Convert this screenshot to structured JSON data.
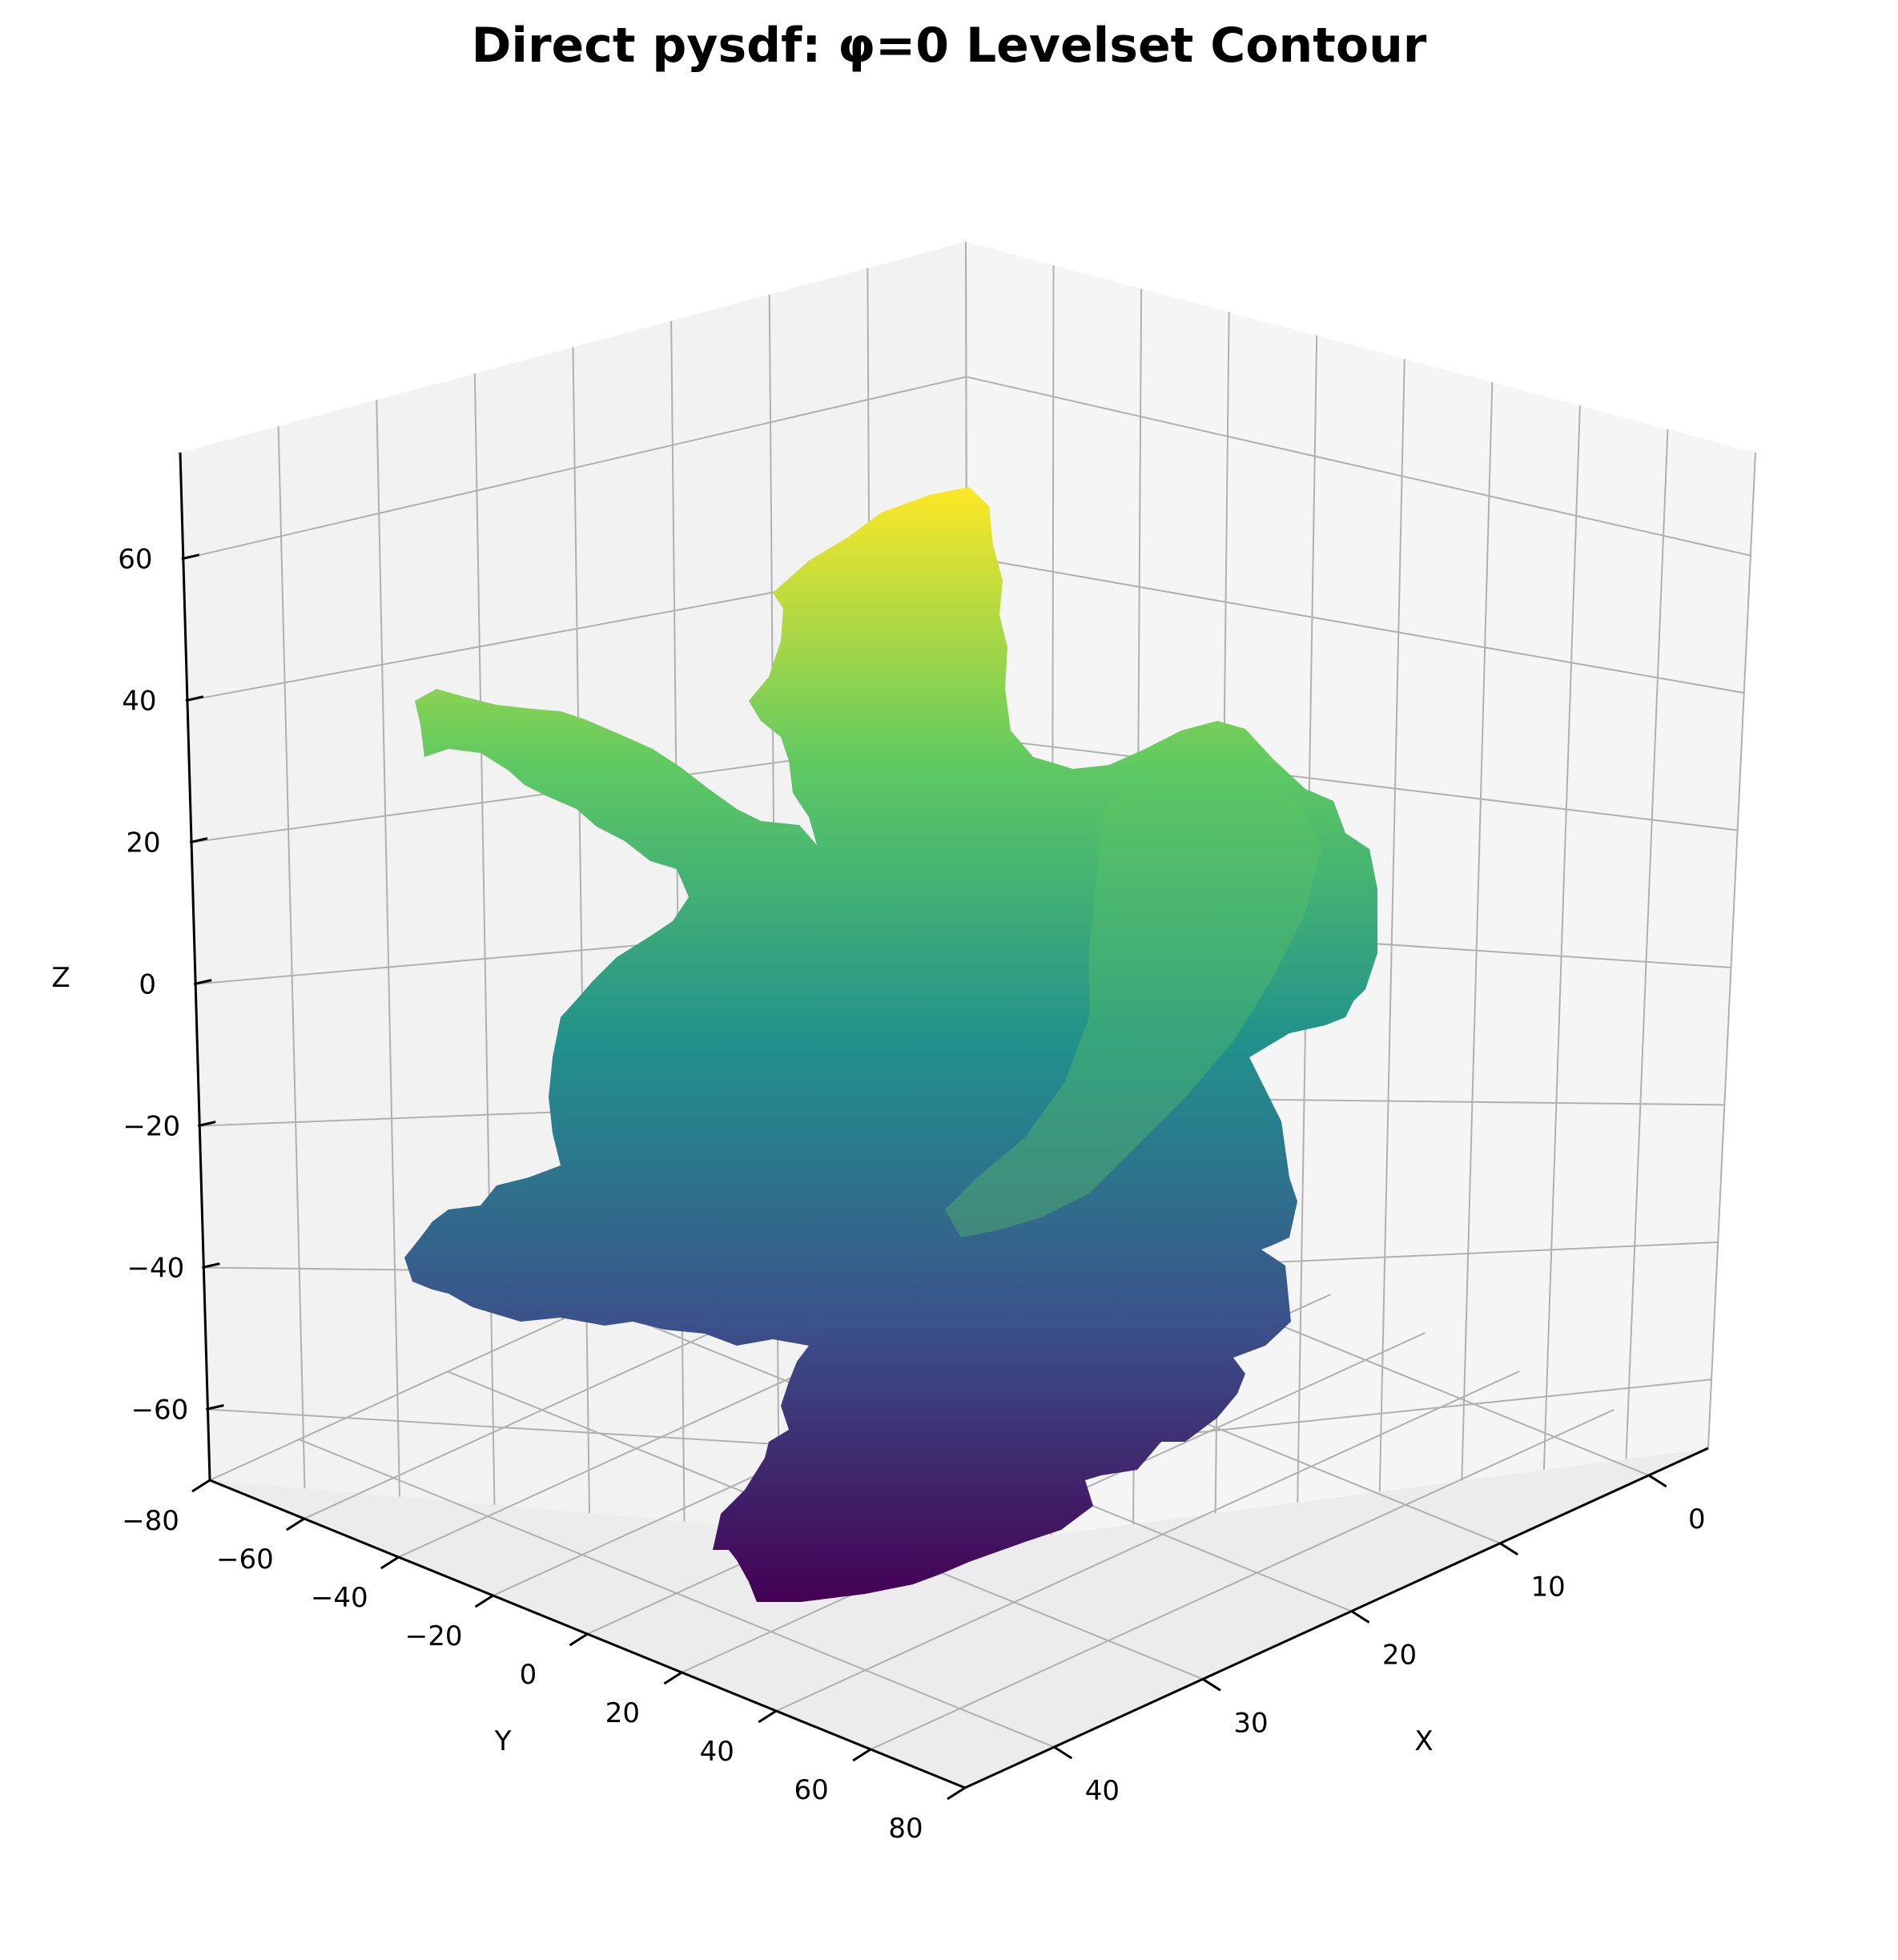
{
  "chart_data": {
    "type": "surface3d",
    "title": "Direct pysdf: φ=0 Levelset Contour",
    "xlabel": "X",
    "ylabel": "Y",
    "zlabel": "Z",
    "xlim": [
      -4,
      46
    ],
    "ylim": [
      -80,
      80
    ],
    "zlim": [
      -70,
      75
    ],
    "x_ticks": [
      "0",
      "10",
      "20",
      "30",
      "40"
    ],
    "y_ticks": [
      "−80",
      "−60",
      "−40",
      "−20",
      "0",
      "20",
      "40",
      "60",
      "80"
    ],
    "z_ticks": [
      "−60",
      "−40",
      "−20",
      "0",
      "20",
      "40",
      "60"
    ],
    "colormap": "viridis",
    "colormap_stops": [
      "#440154",
      "#3b528b",
      "#21918c",
      "#5ec962",
      "#fde725"
    ],
    "grid": true,
    "pane_color": "#f2f2f2",
    "grid_color": "#b0b0b0"
  }
}
